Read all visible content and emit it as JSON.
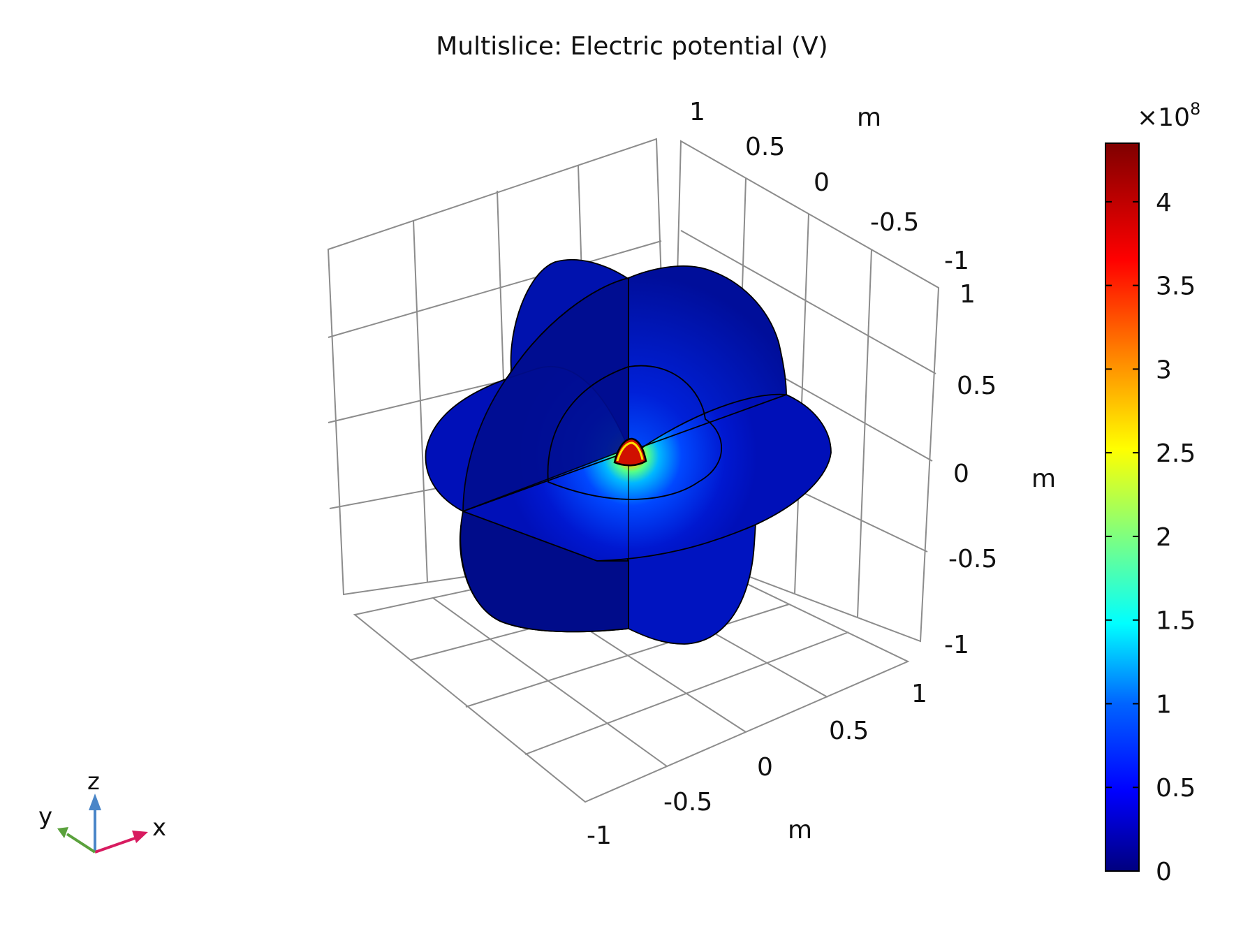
{
  "chart_data": {
    "type": "3d-multislice",
    "title": "Multislice: Electric potential (V)",
    "quantity": "Electric potential",
    "unit": "V",
    "axes": {
      "x": {
        "label": "m",
        "ticks": [
          "-1",
          "-0.5",
          "0",
          "0.5",
          "1"
        ],
        "range": [
          -1,
          1
        ]
      },
      "y": {
        "label": "m",
        "ticks": [
          "1",
          "0.5",
          "0",
          "-0.5",
          "-1"
        ],
        "range": [
          -1,
          1
        ]
      },
      "z": {
        "label": "m",
        "ticks": [
          "1",
          "0.5",
          "0",
          "-0.5",
          "-1"
        ],
        "range": [
          -1,
          1
        ]
      }
    },
    "grid": true,
    "colorbar": {
      "multiplier": "×10",
      "exponent": "8",
      "ticks": [
        "0",
        "0.5",
        "1",
        "1.5",
        "2",
        "2.5",
        "3",
        "3.5",
        "4"
      ],
      "tick_values": [
        0,
        0.5,
        1,
        1.5,
        2,
        2.5,
        3,
        3.5,
        4
      ],
      "range": [
        0,
        4.35
      ],
      "colormap": [
        "#00007f",
        "#0000ff",
        "#007fff",
        "#00ffff",
        "#7fff7f",
        "#ffff00",
        "#ff7f00",
        "#ff0000",
        "#7f0000"
      ]
    },
    "triad": {
      "x": "x",
      "y": "y",
      "z": "z",
      "x_color": "#d81b60",
      "y_color": "#5aa13c",
      "z_color": "#4a86c8"
    }
  }
}
